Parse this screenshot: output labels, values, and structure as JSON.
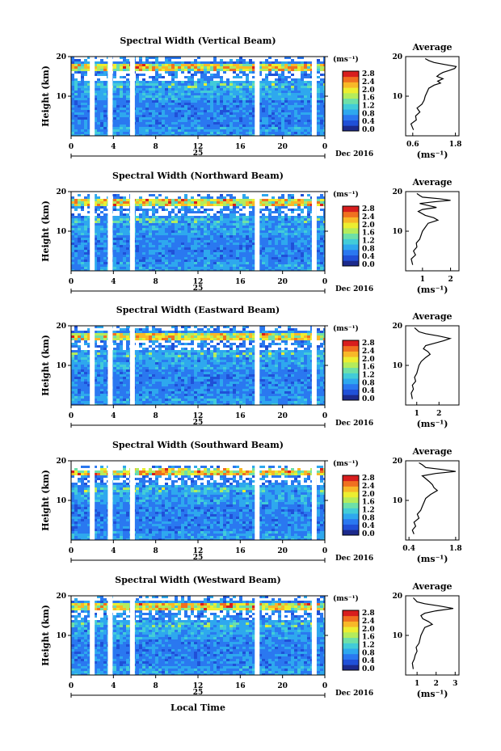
{
  "page": {
    "xlabel": "Local Time"
  },
  "colorbar": {
    "unit_label": "(ms⁻¹)",
    "tick_labels": [
      "0.0",
      "0.4",
      "0.8",
      "1.2",
      "1.6",
      "2.0",
      "2.4",
      "2.8"
    ],
    "range": [
      0.0,
      2.8
    ],
    "colors": [
      "#1c2a8c",
      "#2050d8",
      "#2a78f0",
      "#2ea8ee",
      "#42ccd8",
      "#6ee0a8",
      "#b4ec5c",
      "#ecee30",
      "#f8b828",
      "#f07020",
      "#d81e1e"
    ]
  },
  "chart_data": [
    {
      "type": "heatmap",
      "title": "Spectral Width (Vertical Beam)",
      "ylabel": "Height (km)",
      "xlim": [
        0,
        24
      ],
      "ylim": [
        0,
        20
      ],
      "x_ticks": [
        "0",
        "4",
        "8",
        "12",
        "16",
        "20",
        "0"
      ],
      "y_ticks": [
        "10",
        "20"
      ],
      "date_tick": "25",
      "date_label": "Dec 2016",
      "gaps_hours": [
        2.0,
        3.7,
        5.8,
        17.6,
        23.0
      ],
      "top_height_km": 18.5,
      "avg_profile": {
        "title": "Average",
        "x_ticks": [
          "0.6",
          "1.8"
        ],
        "xlim": [
          0.4,
          1.9
        ],
        "xlabel": "(ms⁻¹)",
        "height_km": [
          1.5,
          3,
          4,
          5,
          6,
          7,
          8,
          9,
          10,
          11,
          12,
          12.8,
          13.3,
          13.8,
          14.4,
          15,
          15.5,
          16,
          16.5,
          17,
          17.5,
          18,
          18.5,
          19,
          19.5
        ],
        "values": [
          0.62,
          0.55,
          0.7,
          0.68,
          0.8,
          0.72,
          0.86,
          0.92,
          0.95,
          1.0,
          1.05,
          1.2,
          1.38,
          1.3,
          1.45,
          1.28,
          1.35,
          1.45,
          1.62,
          1.78,
          1.82,
          1.5,
          1.2,
          1.05,
          0.95
        ]
      }
    },
    {
      "type": "heatmap",
      "title": "Spectral Width (Northward Beam)",
      "ylabel": "Height (km)",
      "xlim": [
        0,
        24
      ],
      "ylim": [
        0,
        20
      ],
      "x_ticks": [
        "0",
        "4",
        "8",
        "12",
        "16",
        "20",
        "0"
      ],
      "y_ticks": [
        "10",
        "20"
      ],
      "date_tick": "25",
      "date_label": "Dec 2016",
      "gaps_hours": [
        2.0,
        3.7,
        5.8,
        17.6,
        23.0
      ],
      "top_height_km": 18.0,
      "avg_profile": {
        "title": "Average",
        "x_ticks": [
          "1",
          "2"
        ],
        "xlim": [
          0.4,
          2.3
        ],
        "xlabel": "(ms⁻¹)",
        "height_km": [
          1.5,
          3,
          4,
          5,
          6,
          7,
          8,
          9,
          10,
          11,
          12,
          12.8,
          13.4,
          14,
          15,
          15.5,
          16,
          16.5,
          17,
          17.4,
          17.8,
          18.2,
          18.6,
          19,
          19.5
        ],
        "values": [
          0.65,
          0.6,
          0.75,
          0.68,
          0.8,
          0.78,
          0.9,
          0.95,
          1.0,
          1.1,
          1.2,
          1.55,
          1.4,
          1.1,
          0.85,
          1.0,
          1.5,
          1.2,
          0.9,
          1.4,
          2.0,
          1.6,
          1.0,
          0.9,
          0.8
        ]
      }
    },
    {
      "type": "heatmap",
      "title": "Spectral Width (Eastward Beam)",
      "ylabel": "Height (km)",
      "xlim": [
        0,
        24
      ],
      "ylim": [
        0,
        20
      ],
      "x_ticks": [
        "0",
        "4",
        "8",
        "12",
        "16",
        "20",
        "0"
      ],
      "y_ticks": [
        "10",
        "20"
      ],
      "date_tick": "25",
      "date_label": "Dec 2016",
      "gaps_hours": [
        2.0,
        3.7,
        5.8,
        17.6,
        23.0
      ],
      "top_height_km": 18.5,
      "avg_profile": {
        "title": "Average",
        "x_ticks": [
          "1",
          "2"
        ],
        "xlim": [
          0.5,
          2.9
        ],
        "xlabel": "(ms⁻¹)",
        "height_km": [
          1.5,
          3,
          4,
          5,
          6,
          7,
          8,
          9,
          10,
          11,
          12,
          12.8,
          13.5,
          14.2,
          15,
          15.6,
          16.2,
          16.8,
          17.4,
          18,
          18.5,
          19,
          19.5
        ],
        "values": [
          0.8,
          0.75,
          0.85,
          0.8,
          0.95,
          0.9,
          1.0,
          1.05,
          1.1,
          1.2,
          1.4,
          1.6,
          1.5,
          1.3,
          1.4,
          1.8,
          2.2,
          2.5,
          2.0,
          1.4,
          1.1,
          1.0,
          0.9
        ]
      }
    },
    {
      "type": "heatmap",
      "title": "Spectral Width (Southward Beam)",
      "ylabel": "Height (km)",
      "xlim": [
        0,
        24
      ],
      "ylim": [
        0,
        20
      ],
      "x_ticks": [
        "0",
        "4",
        "8",
        "12",
        "16",
        "20",
        "0"
      ],
      "y_ticks": [
        "10",
        "20"
      ],
      "date_tick": "25",
      "date_label": "Dec 2016",
      "gaps_hours": [
        2.0,
        3.7,
        5.8,
        17.6,
        23.0
      ],
      "top_height_km": 17.5,
      "avg_profile": {
        "title": "Average",
        "x_ticks": [
          "0.4",
          "1.8"
        ],
        "xlim": [
          0.3,
          1.9
        ],
        "xlabel": "(ms⁻¹)",
        "height_km": [
          1.5,
          2.5,
          3.5,
          4.5,
          5.5,
          6.5,
          7.5,
          8.5,
          9.5,
          10.5,
          11.5,
          12.5,
          13.2,
          14,
          14.8,
          15.5,
          16.2,
          16.8,
          17.3,
          17.8,
          18.3,
          19,
          19.5
        ],
        "values": [
          0.55,
          0.5,
          0.6,
          0.55,
          0.7,
          0.65,
          0.75,
          0.8,
          0.85,
          0.9,
          1.05,
          1.25,
          1.15,
          1.1,
          1.0,
          0.9,
          0.8,
          1.2,
          1.8,
          1.4,
          0.9,
          0.8,
          0.7
        ]
      }
    },
    {
      "type": "heatmap",
      "title": "Spectral Width (Westward Beam)",
      "ylabel": "Height (km)",
      "xlim": [
        0,
        24
      ],
      "ylim": [
        0,
        20
      ],
      "x_ticks": [
        "0",
        "4",
        "8",
        "12",
        "16",
        "20",
        "0"
      ],
      "y_ticks": [
        "10",
        "20"
      ],
      "date_tick": "25",
      "date_label": "Dec 2016",
      "xlabel": "Local Time",
      "gaps_hours": [
        2.0,
        3.7,
        5.8,
        17.6,
        23.0
      ],
      "top_height_km": 18.5,
      "avg_profile": {
        "title": "Average",
        "x_ticks": [
          "1",
          "2",
          "3"
        ],
        "xlim": [
          0.4,
          3.2
        ],
        "xlabel": "(ms⁻¹)",
        "height_km": [
          1.5,
          3,
          4,
          5,
          6,
          7,
          8,
          9,
          10,
          11,
          12,
          12.8,
          13.5,
          14.2,
          15,
          15.6,
          16.2,
          16.8,
          17.4,
          18,
          18.5,
          19,
          19.5
        ],
        "values": [
          0.8,
          0.75,
          0.85,
          0.9,
          1.0,
          0.95,
          1.1,
          1.15,
          1.2,
          1.3,
          1.4,
          1.8,
          1.6,
          1.3,
          1.2,
          1.4,
          2.0,
          2.9,
          2.2,
          1.4,
          1.0,
          0.9,
          0.8
        ]
      }
    }
  ]
}
